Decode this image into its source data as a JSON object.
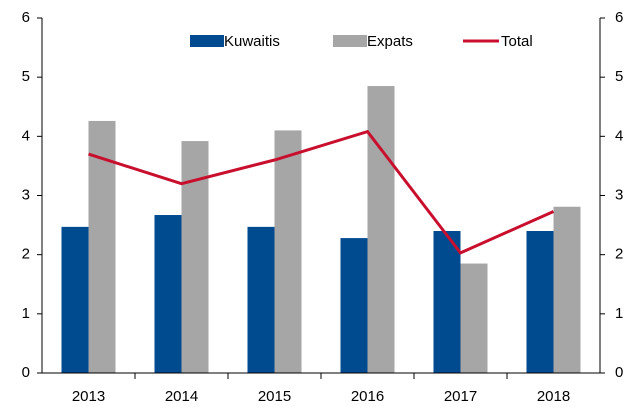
{
  "chart_data": {
    "type": "bar_line",
    "categories": [
      "2013",
      "2014",
      "2015",
      "2016",
      "2017",
      "2018"
    ],
    "series": [
      {
        "name": "Kuwaitis",
        "color": "#004a8f",
        "type": "bar",
        "values": [
          2.47,
          2.67,
          2.47,
          2.28,
          2.4,
          2.4
        ]
      },
      {
        "name": "Expats",
        "color": "#a6a6a6",
        "type": "bar",
        "values": [
          4.26,
          3.92,
          4.1,
          4.85,
          1.85,
          2.81
        ]
      },
      {
        "name": "Total",
        "color": "#c8102e",
        "type": "line",
        "axis": "y2",
        "values": [
          3.7,
          3.2,
          3.6,
          4.08,
          2.03,
          2.73
        ]
      }
    ],
    "ylim": [
      0,
      6
    ],
    "yticks": [
      0,
      1,
      2,
      3,
      4,
      5,
      6
    ],
    "y2lim": [
      0,
      6
    ],
    "y2ticks": [
      0,
      1,
      2,
      3,
      4,
      5,
      6
    ],
    "grid": false,
    "legend": "top"
  }
}
